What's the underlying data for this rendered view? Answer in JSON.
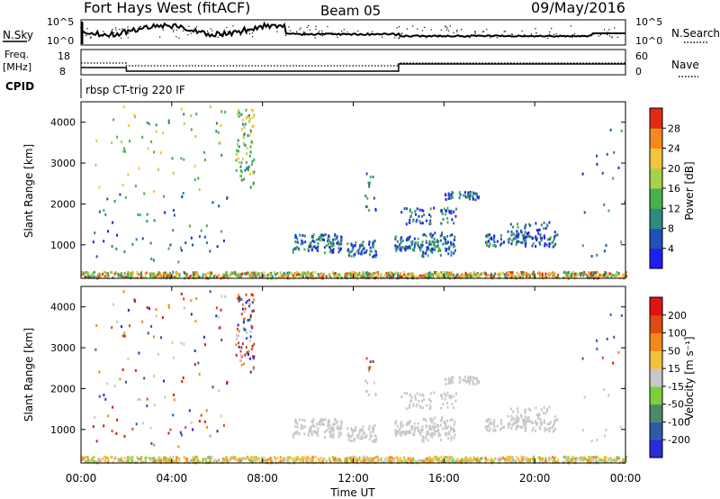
{
  "header": {
    "title": "Fort Hays West (fitACF)",
    "beam": "Beam 05",
    "date": "09/May/2016"
  },
  "noise_panel": {
    "left_label": "N.Sky",
    "right_label": "N.Search",
    "left_ticks": [
      "10^5",
      "10^0"
    ],
    "right_ticks": [
      "10^5",
      "10^0"
    ]
  },
  "freq_panel": {
    "left_label_1": "Freq.",
    "left_label_2": "[MHz]",
    "right_label": "Nave",
    "left_ticks": [
      "18",
      "8"
    ],
    "right_ticks": [
      "60",
      "0"
    ],
    "freq_mhz": [
      {
        "from_hr": 0,
        "to_hr": 2,
        "value": 12
      },
      {
        "from_hr": 2,
        "to_hr": 14,
        "value": 10
      },
      {
        "from_hr": 14,
        "to_hr": 24,
        "value": 14
      }
    ]
  },
  "cpid": {
    "label": "CPID",
    "program": "rbsp CT-trig 220 IF"
  },
  "chart_data": [
    {
      "type": "heatmap",
      "name": "power",
      "ylabel": "Slant Range [km]",
      "xlabel": "",
      "xlim_hr": [
        0,
        24
      ],
      "ylim": [
        180,
        4500
      ],
      "y_ticks": [
        "4000",
        "3000",
        "2000",
        "1000"
      ],
      "colorbar": {
        "label": "Power [dB]",
        "ticks": [
          "28",
          "24",
          "20",
          "16",
          "12",
          "8",
          "4"
        ],
        "range": [
          0,
          30
        ],
        "colors": [
          "#1f1ff0",
          "#1f52b8",
          "#2e8a7c",
          "#48b04e",
          "#a6d24a",
          "#f2c63a",
          "#f58a1c",
          "#e02a14"
        ]
      }
    },
    {
      "type": "heatmap",
      "name": "velocity",
      "ylabel": "Slant Range [km]",
      "xlabel": "Time UT",
      "xlim_hr": [
        0,
        24
      ],
      "ylim": [
        180,
        4500
      ],
      "y_ticks": [
        "4000",
        "3000",
        "2000",
        "1000"
      ],
      "x_ticks": [
        "00:00",
        "04:00",
        "08:00",
        "12:00",
        "16:00",
        "20:00",
        "00:00"
      ],
      "colorbar": {
        "label": "Velocity [m s⁻¹]",
        "ticks": [
          "200",
          "100",
          "50",
          "15",
          "-15",
          "-50",
          "-100",
          "-200"
        ],
        "colors": [
          "#2a2ad8",
          "#2a5ca8",
          "#4a8a6a",
          "#7ad03a",
          "#c8c8c8",
          "#f2c23a",
          "#f08a1a",
          "#e04a14",
          "#e01414"
        ]
      }
    }
  ]
}
